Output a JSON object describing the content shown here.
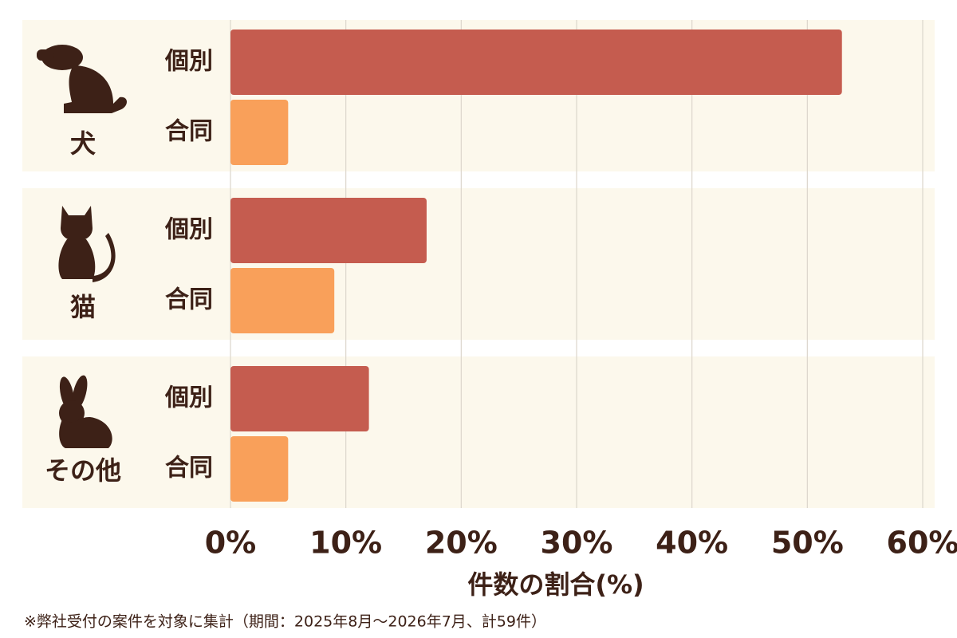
{
  "chart_data": {
    "type": "bar",
    "orientation": "horizontal",
    "categories": [
      "犬",
      "猫",
      "その他"
    ],
    "series": [
      {
        "name": "個別",
        "color": "#c55c4f",
        "values": [
          53,
          17,
          12
        ]
      },
      {
        "name": "合同",
        "color": "#f9a05a",
        "values": [
          5,
          9,
          5
        ]
      }
    ],
    "xlabel": "件数の割合(%)",
    "xlim": [
      0,
      60
    ],
    "xticks": [
      {
        "value": 0,
        "label": "0%"
      },
      {
        "value": 10,
        "label": "10%"
      },
      {
        "value": 20,
        "label": "20%"
      },
      {
        "value": 30,
        "label": "30%"
      },
      {
        "value": 40,
        "label": "40%"
      },
      {
        "value": 50,
        "label": "50%"
      },
      {
        "value": 60,
        "label": "60%"
      }
    ],
    "grid": true,
    "note": "※弊社受付の案件を対象に集計（期間：2025年8月～2026年7月、計59件）"
  }
}
